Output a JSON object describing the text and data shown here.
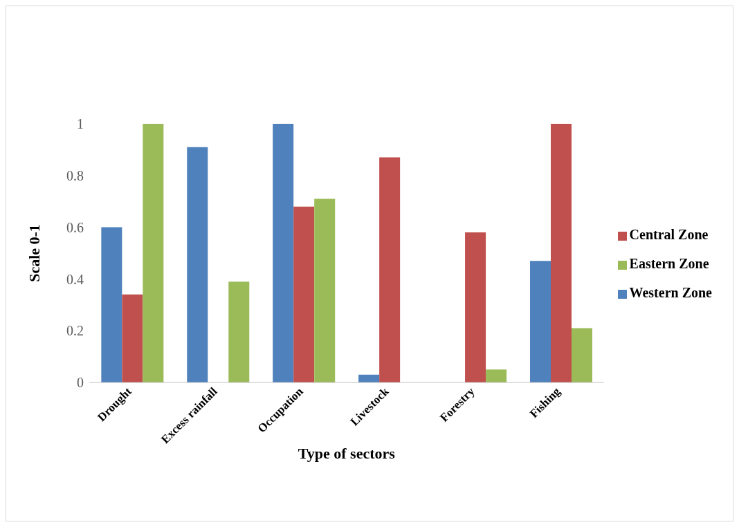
{
  "chart_data": {
    "type": "bar",
    "xlabel": "Type of sectors",
    "ylabel": "Scale 0-1",
    "categories": [
      "Drought",
      "Excess rainfall",
      "Occupation",
      "Livestock",
      "Forestry",
      "Fishing"
    ],
    "series": [
      {
        "name": "Western Zone",
        "color": "#4f81bd",
        "values": [
          0.6,
          0.91,
          1.0,
          0.03,
          0,
          0.47
        ]
      },
      {
        "name": "Central Zone",
        "color": "#c0504d",
        "values": [
          0.34,
          0,
          0.68,
          0.87,
          0.58,
          1.0
        ]
      },
      {
        "name": "Eastern Zone",
        "color": "#9bbb59",
        "values": [
          1.0,
          0.39,
          0.71,
          0,
          0.05,
          0.21
        ]
      }
    ],
    "ylim": [
      0,
      1
    ],
    "yticks": [
      0,
      0.2,
      0.4,
      0.6,
      0.8,
      1
    ],
    "grid": false,
    "legend": "right"
  }
}
